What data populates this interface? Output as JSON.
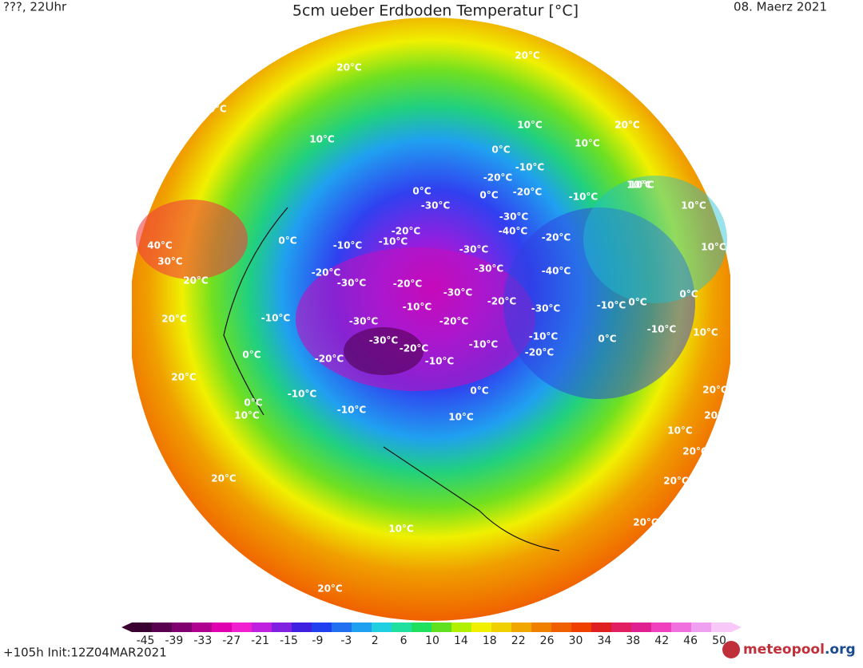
{
  "header": {
    "left": "???, 22Uhr",
    "title": "5cm ueber Erdboden Temperatur [°C]",
    "date": "08. Maerz 2021"
  },
  "map": {
    "labels": [
      "20°C",
      "20°C",
      "20°C",
      "10°C",
      "20°C",
      "10°C",
      "0°C",
      "10°C",
      "0°C",
      "-20°C",
      "-10°C",
      "0°C",
      "-10°C",
      "10°C",
      "-20°C",
      "-30°C",
      "-20°C",
      "-30°C",
      "-10°C",
      "-40°C",
      "-30°C",
      "-20°C",
      "-20°C",
      "-30°C",
      "-10°C",
      "-20°C",
      "-30°C",
      "-30°C",
      "-10°C",
      "-40°C",
      "-30°C",
      "-20°C",
      "-10°C",
      "0°C",
      "-10°C",
      "-30°C",
      "-20°C",
      "-30°C",
      "-20°C",
      "-10°C",
      "-10°C",
      "-10°C",
      "0°C",
      "10°C",
      "-20°C",
      "-10°C",
      "0°C",
      "10°C",
      "20°C",
      "10°C",
      "10°C",
      "20°C",
      "20°C",
      "0°C",
      "-10°C",
      "-20°C",
      "0°C",
      "10°C",
      "20°C",
      "20°C",
      "10°C",
      "20°C",
      "20°C",
      "20°C",
      "10°C",
      "20°C",
      "40°C",
      "30°C",
      "20°C",
      "0°C",
      "-10°C",
      "0°C",
      "10°C",
      "20°C",
      "20°C"
    ]
  },
  "colorbar": {
    "ticks": [
      -45,
      -39,
      -33,
      -27,
      -21,
      -15,
      -9,
      -3,
      2,
      6,
      10,
      14,
      18,
      22,
      26,
      30,
      34,
      38,
      42,
      46,
      50
    ],
    "colors": [
      "#3a0030",
      "#5a0050",
      "#800070",
      "#b00090",
      "#e000b0",
      "#f020d0",
      "#c020e0",
      "#8020e0",
      "#4020e0",
      "#2040f0",
      "#2070f0",
      "#20a0f0",
      "#20d0e0",
      "#20e0a0",
      "#20e060",
      "#60e020",
      "#b0f000",
      "#f0f000",
      "#f0d000",
      "#f0a800",
      "#f08000",
      "#f06000",
      "#f04000",
      "#e02020",
      "#e02060",
      "#e02090",
      "#f040c0",
      "#f070e0",
      "#f0a0f0",
      "#f8c8f8"
    ]
  },
  "footer": {
    "run": "+105h Init:12Z04MAR2021",
    "logo": "meteopool",
    "logo_suffix": ".org"
  }
}
